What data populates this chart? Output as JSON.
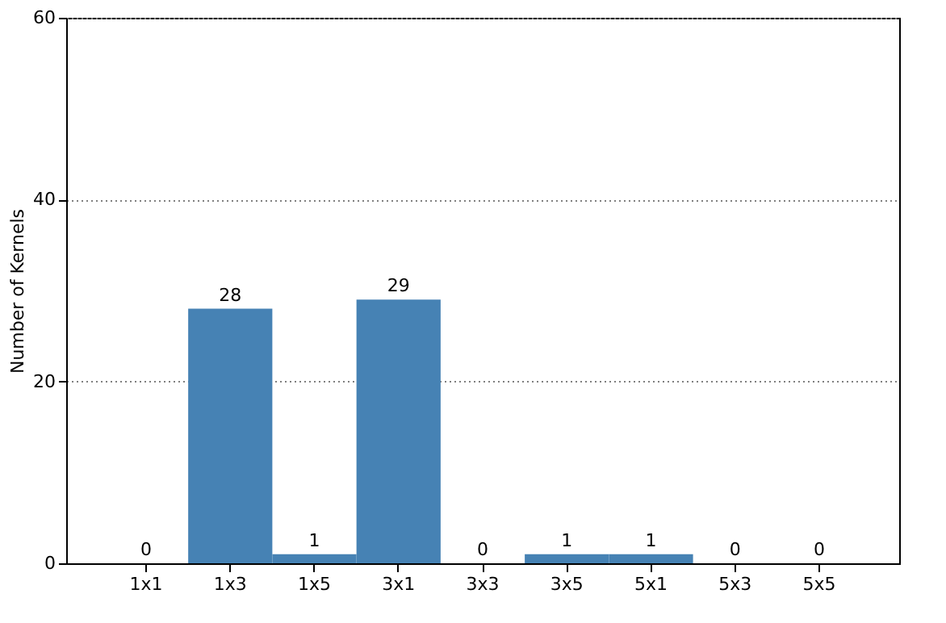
{
  "chart_data": {
    "type": "bar",
    "ylabel": "Number of Kernels",
    "categories": [
      "1x1",
      "1x3",
      "1x5",
      "3x1",
      "3x3",
      "3x5",
      "5x1",
      "5x3",
      "5x5"
    ],
    "values": [
      0,
      28,
      1,
      29,
      0,
      1,
      1,
      0,
      0
    ],
    "color": "#4682b4",
    "ylim": [
      0,
      60
    ],
    "yticks": [
      0,
      20,
      40,
      60
    ],
    "grid": "y",
    "data_labels": true
  }
}
